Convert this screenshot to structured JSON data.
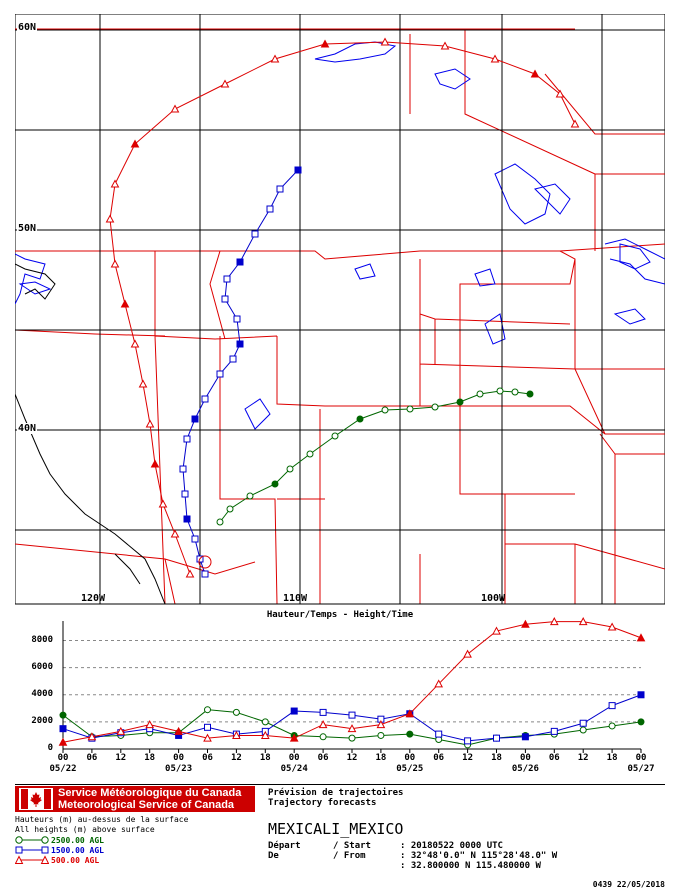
{
  "map": {
    "lat_labels": [
      "60N",
      "50N",
      "40N"
    ],
    "lon_labels": [
      "120W",
      "110W",
      "100W"
    ],
    "colors": {
      "coast": "#0000ee",
      "border": "#dd0000",
      "grid": "#000000"
    },
    "tracks": [
      {
        "level": "2500.00 AGL",
        "color": "#006600",
        "marker": "circle"
      },
      {
        "level": "1500.00 AGL",
        "color": "#0000cc",
        "marker": "square"
      },
      {
        "level": "500.00 AGL",
        "color": "#dd0000",
        "marker": "triangle"
      }
    ]
  },
  "chart": {
    "title": "Hauteur/Temps - Height/Time",
    "y_ticks": [
      "8000",
      "6000",
      "4000",
      "2000",
      "0"
    ],
    "x_hours": [
      "00",
      "06",
      "12",
      "18",
      "00",
      "06",
      "12",
      "18",
      "00",
      "06",
      "12",
      "18",
      "00",
      "06",
      "12",
      "18",
      "00",
      "06",
      "12",
      "18",
      "00"
    ],
    "x_dates": [
      "05/22",
      "05/23",
      "05/24",
      "05/25",
      "05/26",
      "05/27"
    ]
  },
  "chart_data": {
    "type": "line",
    "title": "Hauteur/Temps - Height/Time",
    "xlabel": "",
    "ylabel": "",
    "x_hours_since_start": [
      0,
      6,
      12,
      18,
      24,
      30,
      36,
      42,
      48,
      54,
      60,
      66,
      72,
      78,
      84,
      90,
      96,
      102,
      108,
      114,
      120
    ],
    "ylim": [
      0,
      9000
    ],
    "series": [
      {
        "name": "2500.00 AGL",
        "color": "#006600",
        "values": [
          2500,
          900,
          1000,
          1200,
          1200,
          2900,
          2700,
          2000,
          1000,
          900,
          800,
          1000,
          1100,
          700,
          300,
          800,
          1000,
          1100,
          1400,
          1700,
          2000
        ]
      },
      {
        "name": "1500.00 AGL",
        "color": "#0000cc",
        "values": [
          1500,
          800,
          1200,
          1500,
          1000,
          1600,
          1100,
          1300,
          2800,
          2700,
          2500,
          2200,
          2600,
          1100,
          600,
          800,
          900,
          1300,
          1900,
          3200,
          4000
        ]
      },
      {
        "name": "500.00 AGL",
        "color": "#dd0000",
        "values": [
          500,
          900,
          1300,
          1800,
          1300,
          800,
          1000,
          1000,
          800,
          1800,
          1500,
          1800,
          2600,
          4800,
          7000,
          8700,
          9200,
          9400,
          9400,
          9000,
          8200
        ]
      }
    ]
  },
  "footer": {
    "msc_line1": "Service Météorologique du Canada",
    "msc_line2": "Meteorological Service of Canada",
    "height_note_fr": "Hauteurs (m) au-dessus de la surface",
    "height_note_en": "All heights (m) above surface",
    "legend": [
      {
        "label": "2500.00 AGL",
        "color": "#006600",
        "marker": "circle"
      },
      {
        "label": "1500.00 AGL",
        "color": "#0000cc",
        "marker": "square"
      },
      {
        "label": "500.00 AGL",
        "color": "#dd0000",
        "marker": "triangle"
      }
    ],
    "forecast_fr": "Prévision de trajectoires",
    "forecast_en": "Trajectory forecasts",
    "station": "MEXICALI_MEXICO",
    "depart_label": "Départ      / Start",
    "de_label": "De          / From",
    "start_value": ": 20180522 0000 UTC",
    "from_dms": ": 32°48'0.0\" N 115°28'48.0\" W",
    "from_dec": ": 32.800000 N 115.480000 W",
    "stamp": "0439 22/05/2018"
  }
}
